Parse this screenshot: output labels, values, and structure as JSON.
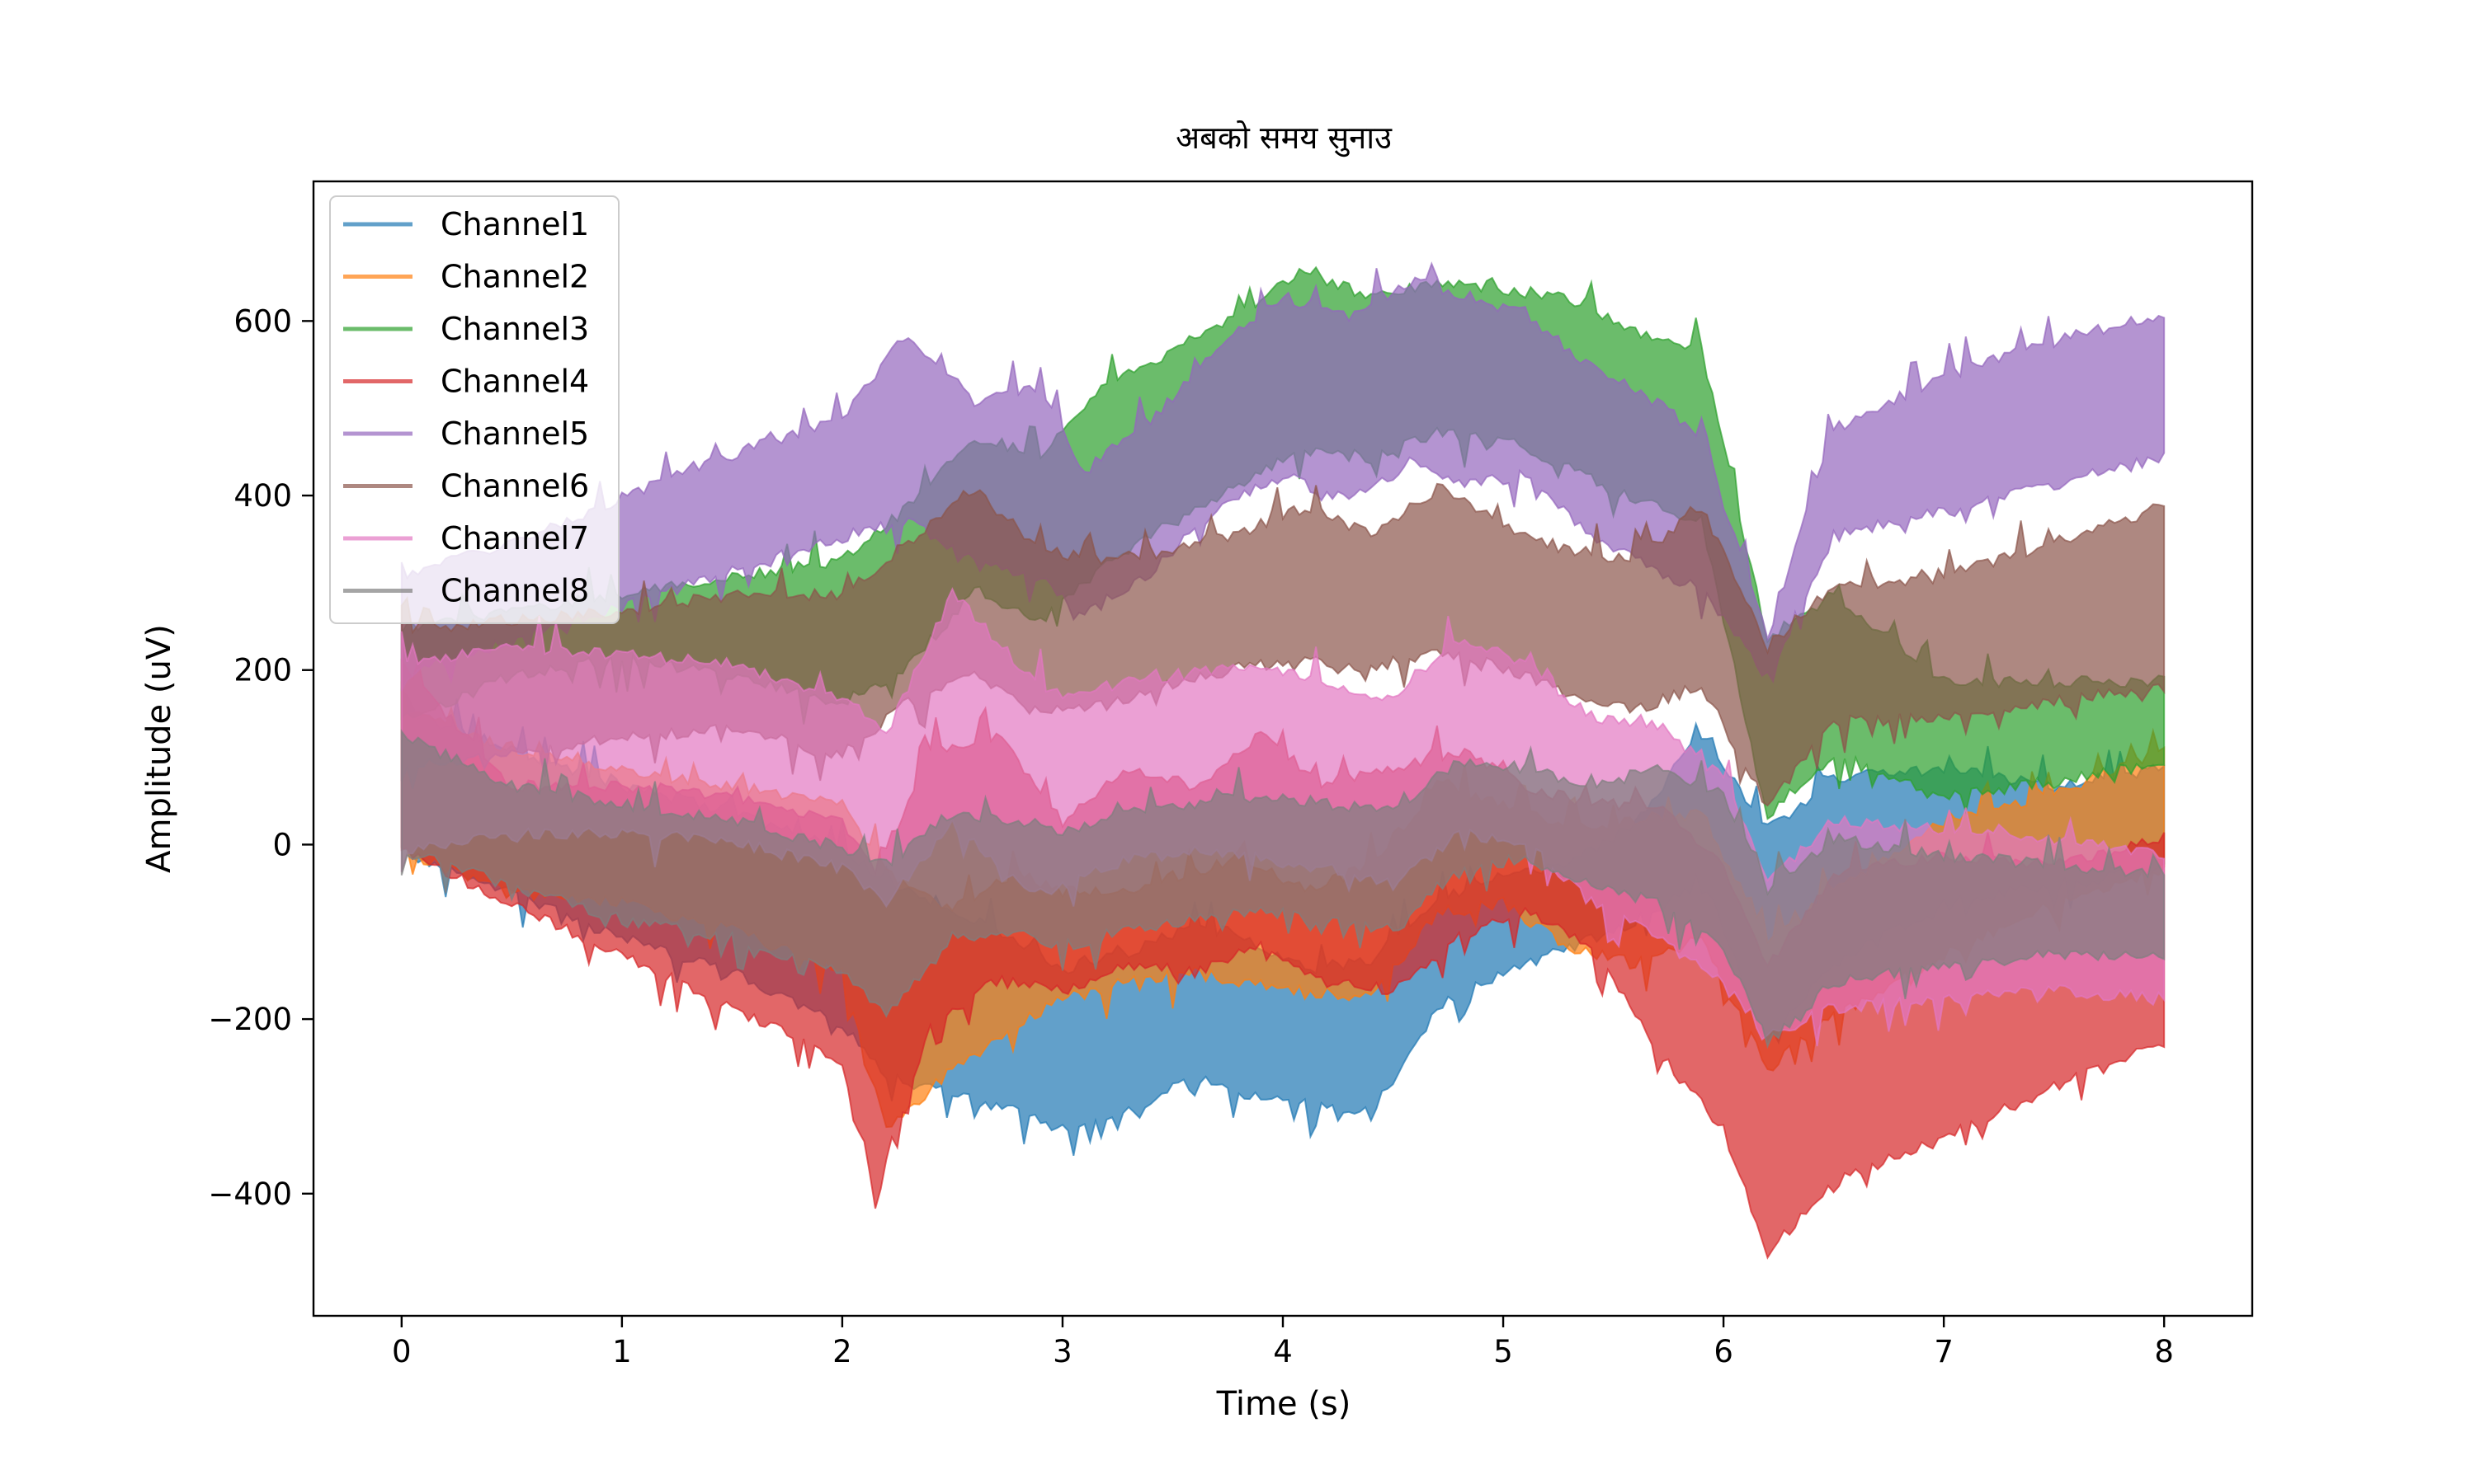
{
  "chart_data": {
    "type": "line",
    "title": "अबको समय सुनाउ",
    "xlabel": "Time (s)",
    "ylabel": "Amplitude (uV)",
    "xlim": [
      -0.4,
      8.4
    ],
    "ylim": [
      -540,
      760
    ],
    "xticks": [
      0,
      1,
      2,
      3,
      4,
      5,
      6,
      7,
      8
    ],
    "yticks": [
      -400,
      -200,
      0,
      200,
      400,
      600
    ],
    "xtick_labels": [
      "0",
      "1",
      "2",
      "3",
      "4",
      "5",
      "6",
      "7",
      "8"
    ],
    "ytick_labels": [
      "−400",
      "−200",
      "0",
      "200",
      "400",
      "600"
    ],
    "grid": false,
    "legend_position": "top-left",
    "series": [
      {
        "name": "Channel1",
        "color": "#1f77b4",
        "x": [
          0,
          0.5,
          1.0,
          1.5,
          2.0,
          2.2,
          2.5,
          2.8,
          3.0,
          3.3,
          3.6,
          3.8,
          4.1,
          4.4,
          4.7,
          5.0,
          5.3,
          5.6,
          5.9,
          6.2,
          6.5,
          7.0,
          7.5,
          8.0
        ],
        "upper": [
          150,
          100,
          60,
          30,
          -10,
          -50,
          -80,
          -120,
          -150,
          -130,
          -100,
          -110,
          -150,
          -140,
          -70,
          -40,
          -30,
          20,
          120,
          10,
          70,
          80,
          60,
          80
        ],
        "lower": [
          0,
          -50,
          -100,
          -140,
          -200,
          -260,
          -280,
          -300,
          -320,
          -300,
          -260,
          -280,
          -290,
          -300,
          -180,
          -140,
          -110,
          -80,
          -30,
          -220,
          -130,
          -60,
          -40,
          -20
        ]
      },
      {
        "name": "Channel2",
        "color": "#ff7f0e",
        "x": [
          0,
          0.5,
          1.0,
          1.5,
          2.0,
          2.2,
          2.5,
          2.8,
          3.0,
          3.3,
          3.6,
          3.8,
          4.1,
          4.4,
          4.7,
          5.0,
          5.3,
          5.6,
          5.9,
          6.2,
          6.5,
          7.0,
          7.5,
          8.0
        ],
        "upper": [
          150,
          100,
          80,
          60,
          40,
          -40,
          -80,
          -40,
          -60,
          -60,
          -40,
          -20,
          -60,
          -30,
          60,
          40,
          10,
          20,
          30,
          -120,
          -60,
          20,
          50,
          100
        ],
        "lower": [
          0,
          -50,
          -60,
          -90,
          -140,
          -320,
          -250,
          -200,
          -170,
          -150,
          -140,
          -150,
          -160,
          -170,
          -70,
          -60,
          -110,
          -130,
          -100,
          -250,
          -190,
          -120,
          -60,
          -20
        ]
      },
      {
        "name": "Channel3",
        "color": "#2ca02c",
        "x": [
          0,
          0.5,
          1.0,
          1.5,
          2.0,
          2.3,
          2.6,
          2.9,
          3.2,
          3.5,
          3.8,
          4.1,
          4.4,
          4.7,
          5.0,
          5.3,
          5.6,
          5.9,
          6.2,
          6.5,
          7.0,
          7.5,
          8.0
        ],
        "upper": [
          240,
          260,
          280,
          300,
          320,
          380,
          460,
          440,
          520,
          560,
          600,
          650,
          620,
          640,
          630,
          620,
          580,
          560,
          230,
          280,
          180,
          180,
          180
        ],
        "lower": [
          150,
          200,
          220,
          200,
          170,
          210,
          300,
          260,
          330,
          380,
          420,
          460,
          450,
          480,
          470,
          440,
          400,
          380,
          40,
          110,
          60,
          80,
          100
        ]
      },
      {
        "name": "Channel4",
        "color": "#d62728",
        "x": [
          0,
          0.5,
          1.0,
          1.5,
          2.0,
          2.15,
          2.4,
          2.7,
          3.0,
          3.3,
          3.6,
          3.9,
          4.2,
          4.5,
          4.8,
          5.1,
          5.4,
          5.7,
          6.0,
          6.2,
          6.5,
          7.0,
          7.5,
          8.0
        ],
        "upper": [
          200,
          60,
          60,
          50,
          20,
          -40,
          100,
          120,
          20,
          80,
          60,
          120,
          60,
          80,
          100,
          60,
          40,
          40,
          -30,
          -150,
          -40,
          -20,
          -30,
          0
        ],
        "lower": [
          0,
          -60,
          -120,
          -180,
          -240,
          -390,
          -200,
          -150,
          -160,
          -130,
          -140,
          -110,
          -150,
          -160,
          -100,
          -70,
          -110,
          -230,
          -320,
          -460,
          -380,
          -330,
          -270,
          -220
        ]
      },
      {
        "name": "Channel5",
        "color": "#9467bd",
        "x": [
          0,
          0.5,
          1.0,
          1.5,
          2.0,
          2.3,
          2.6,
          2.9,
          3.1,
          3.4,
          3.7,
          4.0,
          4.3,
          4.6,
          4.8,
          5.1,
          5.4,
          5.7,
          5.9,
          6.2,
          6.5,
          7.0,
          7.5,
          8.0
        ],
        "upper": [
          300,
          340,
          390,
          440,
          480,
          580,
          500,
          520,
          420,
          480,
          560,
          620,
          600,
          640,
          620,
          600,
          540,
          500,
          460,
          230,
          470,
          530,
          570,
          600
        ],
        "lower": [
          200,
          240,
          280,
          320,
          360,
          380,
          330,
          310,
          270,
          320,
          390,
          430,
          400,
          450,
          420,
          430,
          360,
          320,
          300,
          200,
          360,
          390,
          420,
          450
        ]
      },
      {
        "name": "Channel6",
        "color": "#8c564b",
        "x": [
          0,
          0.5,
          1.0,
          1.5,
          2.0,
          2.3,
          2.6,
          2.9,
          3.2,
          3.5,
          3.8,
          4.1,
          4.4,
          4.7,
          5.0,
          5.3,
          5.6,
          5.9,
          6.2,
          6.5,
          7.0,
          7.5,
          8.0
        ],
        "upper": [
          240,
          250,
          260,
          280,
          280,
          340,
          400,
          330,
          320,
          330,
          350,
          380,
          350,
          400,
          360,
          330,
          320,
          380,
          220,
          290,
          300,
          340,
          380
        ],
        "lower": [
          100,
          110,
          130,
          140,
          110,
          170,
          200,
          160,
          170,
          190,
          210,
          220,
          210,
          230,
          210,
          180,
          160,
          190,
          50,
          150,
          150,
          170,
          190
        ]
      },
      {
        "name": "Channel7",
        "color": "#e377c2",
        "x": [
          0,
          0.5,
          1.0,
          1.5,
          2.0,
          2.2,
          2.5,
          2.8,
          3.0,
          3.3,
          3.6,
          3.9,
          4.2,
          4.5,
          4.8,
          5.1,
          5.4,
          5.7,
          6.0,
          6.2,
          6.5,
          7.0,
          7.5,
          8.0
        ],
        "upper": [
          200,
          220,
          210,
          200,
          160,
          120,
          280,
          200,
          160,
          180,
          190,
          200,
          180,
          160,
          230,
          200,
          140,
          130,
          70,
          -50,
          20,
          10,
          0,
          -20
        ],
        "lower": [
          0,
          20,
          20,
          10,
          -20,
          -60,
          30,
          -40,
          -40,
          -10,
          0,
          -10,
          -20,
          -40,
          20,
          10,
          -60,
          -100,
          -150,
          -210,
          -180,
          -170,
          -160,
          -170
        ]
      },
      {
        "name": "Channel8",
        "color": "#7f7f7f",
        "x": [
          0,
          0.5,
          1.0,
          1.5,
          2.0,
          2.2,
          2.5,
          2.8,
          3.0,
          3.3,
          3.6,
          3.9,
          4.2,
          4.5,
          4.8,
          5.1,
          5.4,
          5.7,
          6.0,
          6.2,
          6.5,
          7.0,
          7.5,
          8.0
        ],
        "upper": [
          120,
          60,
          40,
          20,
          -10,
          -30,
          30,
          20,
          10,
          30,
          40,
          50,
          40,
          30,
          90,
          80,
          60,
          80,
          50,
          -60,
          0,
          -20,
          -30,
          -40
        ],
        "lower": [
          0,
          -40,
          -80,
          -100,
          -140,
          -190,
          -100,
          -90,
          -110,
          -90,
          -80,
          -70,
          -80,
          -90,
          -20,
          -10,
          -40,
          -60,
          -110,
          -220,
          -150,
          -130,
          -120,
          -120
        ]
      }
    ]
  }
}
